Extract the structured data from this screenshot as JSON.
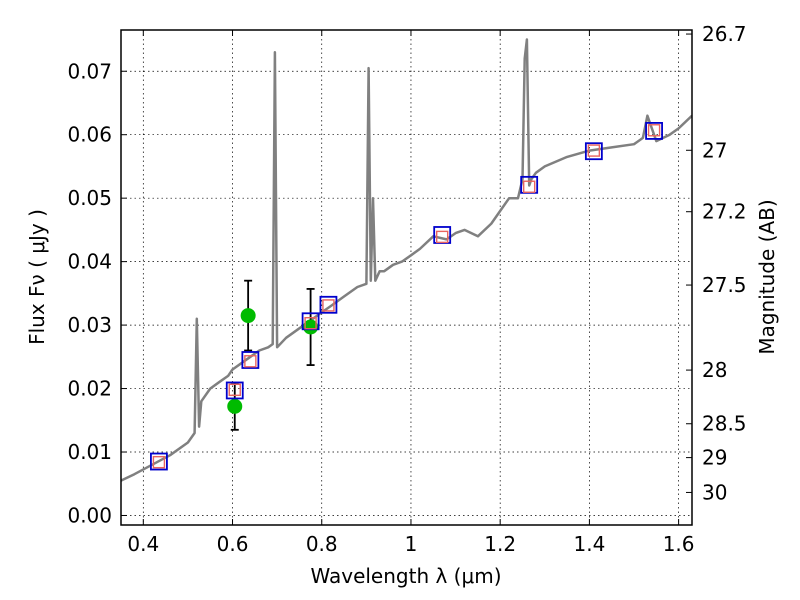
{
  "chart_data": {
    "type": "scatter",
    "xlabel": "Wavelength  λ (μm)",
    "ylabel": "Flux  Fν  ( μJy )",
    "y2label": "Magnitude (AB)",
    "xlim": [
      0.35,
      1.63
    ],
    "ylim": [
      -0.0015,
      0.0765
    ],
    "grid": true,
    "x_ticks": [
      "0.4",
      "0.6",
      "0.8",
      "1",
      "1.2",
      "1.4",
      "1.6"
    ],
    "y_ticks": [
      "0.00",
      "0.01",
      "0.02",
      "0.03",
      "0.04",
      "0.05",
      "0.06",
      "0.07"
    ],
    "y2_ticks": [
      "26.7",
      "27",
      "27.2",
      "27.5",
      "28",
      "28.5",
      "29",
      "30"
    ],
    "colors": {
      "model": "#808080",
      "observed": "#00bb00",
      "model_box": "#0000cc",
      "synthetic": "#e8645f",
      "errorbar": "#000000"
    },
    "series": [
      {
        "type": "line",
        "x": [
          0.35,
          0.38,
          0.42,
          0.46,
          0.5,
          0.515,
          0.52,
          0.525,
          0.53,
          0.55,
          0.57,
          0.59,
          0.6,
          0.62,
          0.64,
          0.66,
          0.68,
          0.69,
          0.695,
          0.7,
          0.72,
          0.75,
          0.78,
          0.8,
          0.82,
          0.85,
          0.88,
          0.9,
          0.905,
          0.91,
          0.915,
          0.92,
          0.93,
          0.94,
          0.96,
          0.98,
          1.0,
          1.02,
          1.05,
          1.08,
          1.1,
          1.12,
          1.15,
          1.18,
          1.2,
          1.22,
          1.24,
          1.25,
          1.255,
          1.26,
          1.265,
          1.27,
          1.28,
          1.3,
          1.35,
          1.4,
          1.45,
          1.5,
          1.52,
          1.53,
          1.55,
          1.58,
          1.6,
          1.63
        ],
        "values": [
          0.0055,
          0.0065,
          0.008,
          0.0095,
          0.0115,
          0.013,
          0.031,
          0.014,
          0.018,
          0.02,
          0.021,
          0.022,
          0.023,
          0.024,
          0.025,
          0.026,
          0.0265,
          0.027,
          0.073,
          0.0265,
          0.028,
          0.0295,
          0.031,
          0.032,
          0.033,
          0.0345,
          0.036,
          0.0365,
          0.0705,
          0.037,
          0.05,
          0.037,
          0.0385,
          0.0385,
          0.0395,
          0.04,
          0.041,
          0.042,
          0.044,
          0.0435,
          0.0445,
          0.045,
          0.044,
          0.046,
          0.048,
          0.05,
          0.05,
          0.053,
          0.072,
          0.075,
          0.052,
          0.053,
          0.054,
          0.055,
          0.0565,
          0.0575,
          0.058,
          0.0585,
          0.0595,
          0.063,
          0.059,
          0.06,
          0.061,
          0.063
        ]
      },
      {
        "type": "scatter",
        "marker": "circle",
        "x": [
          0.605,
          0.635,
          0.775
        ],
        "values": [
          0.0172,
          0.0315,
          0.0297
        ],
        "yerr": [
          0.0037,
          0.0055,
          0.006
        ]
      },
      {
        "type": "scatter",
        "marker": "square",
        "x": [
          0.435,
          0.605,
          0.64,
          0.775,
          0.815,
          1.07,
          1.265,
          1.41,
          1.545
        ],
        "values": [
          0.0085,
          0.0197,
          0.0245,
          0.0306,
          0.0332,
          0.0442,
          0.0521,
          0.0574,
          0.0606
        ]
      },
      {
        "type": "scatter",
        "marker": "square-small",
        "x": [
          0.435,
          0.605,
          0.64,
          0.775,
          0.815,
          1.07,
          1.265,
          1.41,
          1.545
        ],
        "values": [
          0.0084,
          0.0198,
          0.0243,
          0.0303,
          0.0331,
          0.0439,
          0.0518,
          0.0575,
          0.0607
        ]
      }
    ]
  }
}
